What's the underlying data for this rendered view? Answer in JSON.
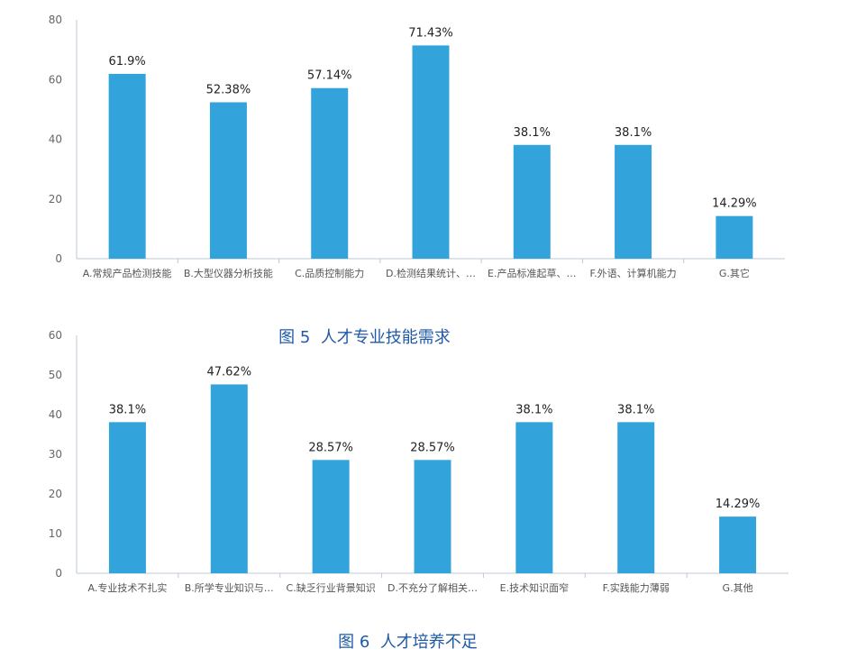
{
  "colors": {
    "bar": "#33a3dc",
    "caption": "#1f5aa6"
  },
  "chart_data": [
    {
      "type": "bar",
      "title": "",
      "xlabel": "",
      "ylabel": "",
      "ylim": [
        0,
        80
      ],
      "yticks": [
        0,
        20,
        40,
        60,
        80
      ],
      "categories": [
        "A.常规产品检测技能",
        "B.大型仪器分析技能",
        "C.品质控制能力",
        "D.检测结果统计、…",
        "E.产品标准起草、…",
        "F.外语、计算机能力",
        "G.其它"
      ],
      "values": [
        61.9,
        52.38,
        57.14,
        71.43,
        38.1,
        38.1,
        14.29
      ],
      "data_labels": [
        "61.9%",
        "52.38%",
        "57.14%",
        "71.43%",
        "38.1%",
        "38.1%",
        "14.29%"
      ],
      "grid": false,
      "legend": "none"
    },
    {
      "type": "bar",
      "title": "",
      "xlabel": "",
      "ylabel": "",
      "ylim": [
        0,
        60
      ],
      "yticks": [
        0,
        10,
        20,
        30,
        40,
        50,
        60
      ],
      "categories": [
        "A.专业技术不扎实",
        "B.所学专业知识与…",
        "C.缺乏行业背景知识",
        "D.不充分了解相关…",
        "E.技术知识面窄",
        "F.实践能力薄弱",
        "G.其他"
      ],
      "values": [
        38.1,
        47.62,
        28.57,
        28.57,
        38.1,
        38.1,
        14.29
      ],
      "data_labels": [
        "38.1%",
        "47.62%",
        "28.57%",
        "28.57%",
        "38.1%",
        "38.1%",
        "14.29%"
      ],
      "grid": false,
      "legend": "none"
    }
  ],
  "captions": {
    "fig5_num": "图 5",
    "fig5_text": "人才专业技能需求",
    "fig6_num": "图 6",
    "fig6_text": "人才培养不足"
  }
}
